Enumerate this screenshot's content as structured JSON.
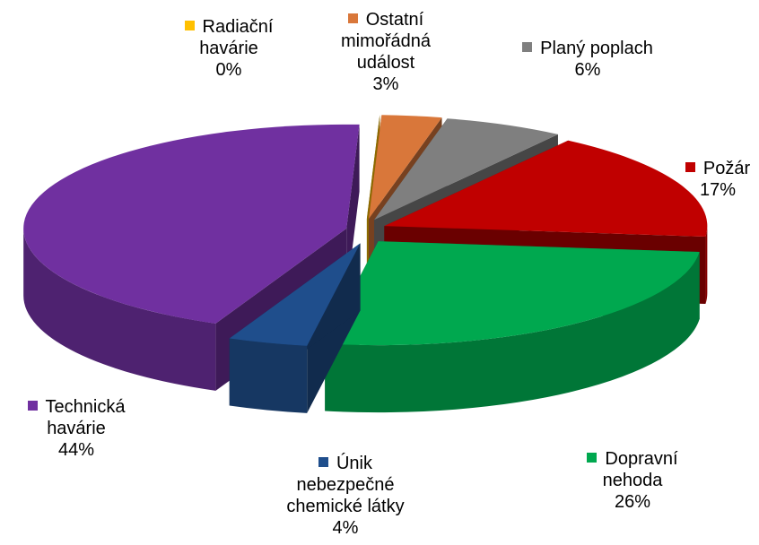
{
  "chart_data": {
    "type": "pie",
    "categories": [
      "Radiační havárie",
      "Ostatní mimořádná událost",
      "Planý poplach",
      "Požár",
      "Dopravní nehoda",
      "Únik nebezpečné chemické látky",
      "Technická havárie"
    ],
    "values": [
      0,
      3,
      6,
      17,
      26,
      4,
      44
    ],
    "value_labels": [
      "0%",
      "3%",
      "6%",
      "17%",
      "26%",
      "4%",
      "44%"
    ],
    "colors": [
      "#ffc000",
      "#d9773a",
      "#7f7f7f",
      "#c00000",
      "#00a84f",
      "#1f4e8c",
      "#7030a0"
    ]
  }
}
